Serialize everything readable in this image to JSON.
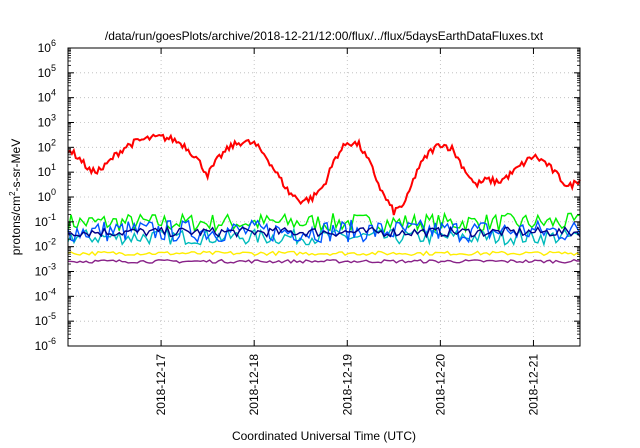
{
  "chart_data": {
    "type": "line",
    "title": "/data/run/goesPlots/archive/2018-12-21/12:00/flux/../flux/5daysEarthDataFluxes.txt",
    "xlabel": "Coordinated Universal Time (UTC)",
    "ylabel": {
      "base": "protons/cm",
      "sup": "2",
      "rest": "-s-sr-MeV"
    },
    "x_range": [
      "2018-12-16T00:00",
      "2018-12-21T12:00"
    ],
    "x_scale": "time",
    "x_ticks": [
      "2018-12-17",
      "2018-12-18",
      "2018-12-19",
      "2018-12-20",
      "2018-12-21"
    ],
    "y_scale": "log",
    "y_range_exp": [
      -6,
      6
    ],
    "y_ticks": [
      {
        "exp": -6,
        "base": "10",
        "sup": "-6"
      },
      {
        "exp": -5,
        "base": "10",
        "sup": "-5"
      },
      {
        "exp": -4,
        "base": "10",
        "sup": "-4"
      },
      {
        "exp": -3,
        "base": "10",
        "sup": "-3"
      },
      {
        "exp": -2,
        "base": "10",
        "sup": "-2"
      },
      {
        "exp": -1,
        "base": "10",
        "sup": "-1"
      },
      {
        "exp": 0,
        "base": "10",
        "sup": "0"
      },
      {
        "exp": 1,
        "base": "10",
        "sup": "1"
      },
      {
        "exp": 2,
        "base": "10",
        "sup": "2"
      },
      {
        "exp": 3,
        "base": "10",
        "sup": "3"
      },
      {
        "exp": 4,
        "base": "10",
        "sup": "4"
      },
      {
        "exp": 5,
        "base": "10",
        "sup": "5"
      },
      {
        "exp": 6,
        "base": "10",
        "sup": "6"
      }
    ],
    "grid": true,
    "series": [
      {
        "color": "#ff0000",
        "style": "line",
        "points": [
          [
            "2018-12-16T00:00",
            90
          ],
          [
            "2018-12-16T03:00",
            35
          ],
          [
            "2018-12-16T06:00",
            10
          ],
          [
            "2018-12-16T09:00",
            14
          ],
          [
            "2018-12-16T12:00",
            45
          ],
          [
            "2018-12-16T15:00",
            110
          ],
          [
            "2018-12-16T18:00",
            180
          ],
          [
            "2018-12-16T21:00",
            230
          ],
          [
            "2018-12-17T00:00",
            260
          ],
          [
            "2018-12-17T03:00",
            210
          ],
          [
            "2018-12-17T06:00",
            120
          ],
          [
            "2018-12-17T09:00",
            40
          ],
          [
            "2018-12-17T12:00",
            8
          ],
          [
            "2018-12-17T15:00",
            40
          ],
          [
            "2018-12-17T18:00",
            110
          ],
          [
            "2018-12-17T21:00",
            170
          ],
          [
            "2018-12-18T00:00",
            140
          ],
          [
            "2018-12-18T03:00",
            45
          ],
          [
            "2018-12-18T06:00",
            8
          ],
          [
            "2018-12-18T09:00",
            1.5
          ],
          [
            "2018-12-18T12:00",
            0.7
          ],
          [
            "2018-12-18T15:00",
            0.9
          ],
          [
            "2018-12-18T18:00",
            3
          ],
          [
            "2018-12-18T21:00",
            40
          ],
          [
            "2018-12-19T00:00",
            160
          ],
          [
            "2018-12-19T03:00",
            130
          ],
          [
            "2018-12-19T06:00",
            20
          ],
          [
            "2018-12-19T09:00",
            1.5
          ],
          [
            "2018-12-19T12:00",
            0.25
          ],
          [
            "2018-12-19T15:00",
            0.6
          ],
          [
            "2018-12-19T18:00",
            12
          ],
          [
            "2018-12-19T21:00",
            60
          ],
          [
            "2018-12-20T00:00",
            140
          ],
          [
            "2018-12-20T03:00",
            90
          ],
          [
            "2018-12-20T06:00",
            15
          ],
          [
            "2018-12-20T09:00",
            3
          ],
          [
            "2018-12-20T12:00",
            5
          ],
          [
            "2018-12-20T15:00",
            4
          ],
          [
            "2018-12-20T18:00",
            8
          ],
          [
            "2018-12-20T21:00",
            20
          ],
          [
            "2018-12-21T00:00",
            45
          ],
          [
            "2018-12-21T03:00",
            25
          ],
          [
            "2018-12-21T06:00",
            8
          ],
          [
            "2018-12-21T09:00",
            2.5
          ],
          [
            "2018-12-21T12:00",
            5
          ]
        ]
      },
      {
        "color": "#00ee00",
        "style": "band",
        "min": 0.04,
        "max": 0.22
      },
      {
        "color": "#00bbbb",
        "style": "band",
        "min": 0.012,
        "max": 0.05
      },
      {
        "color": "#0055ff",
        "style": "band",
        "min": 0.015,
        "max": 0.12
      },
      {
        "color": "#000088",
        "style": "band",
        "min": 0.025,
        "max": 0.06
      },
      {
        "color": "#ffee00",
        "style": "band",
        "min": 0.0045,
        "max": 0.0065
      },
      {
        "color": "#882288",
        "style": "band",
        "min": 0.0022,
        "max": 0.003
      }
    ]
  }
}
